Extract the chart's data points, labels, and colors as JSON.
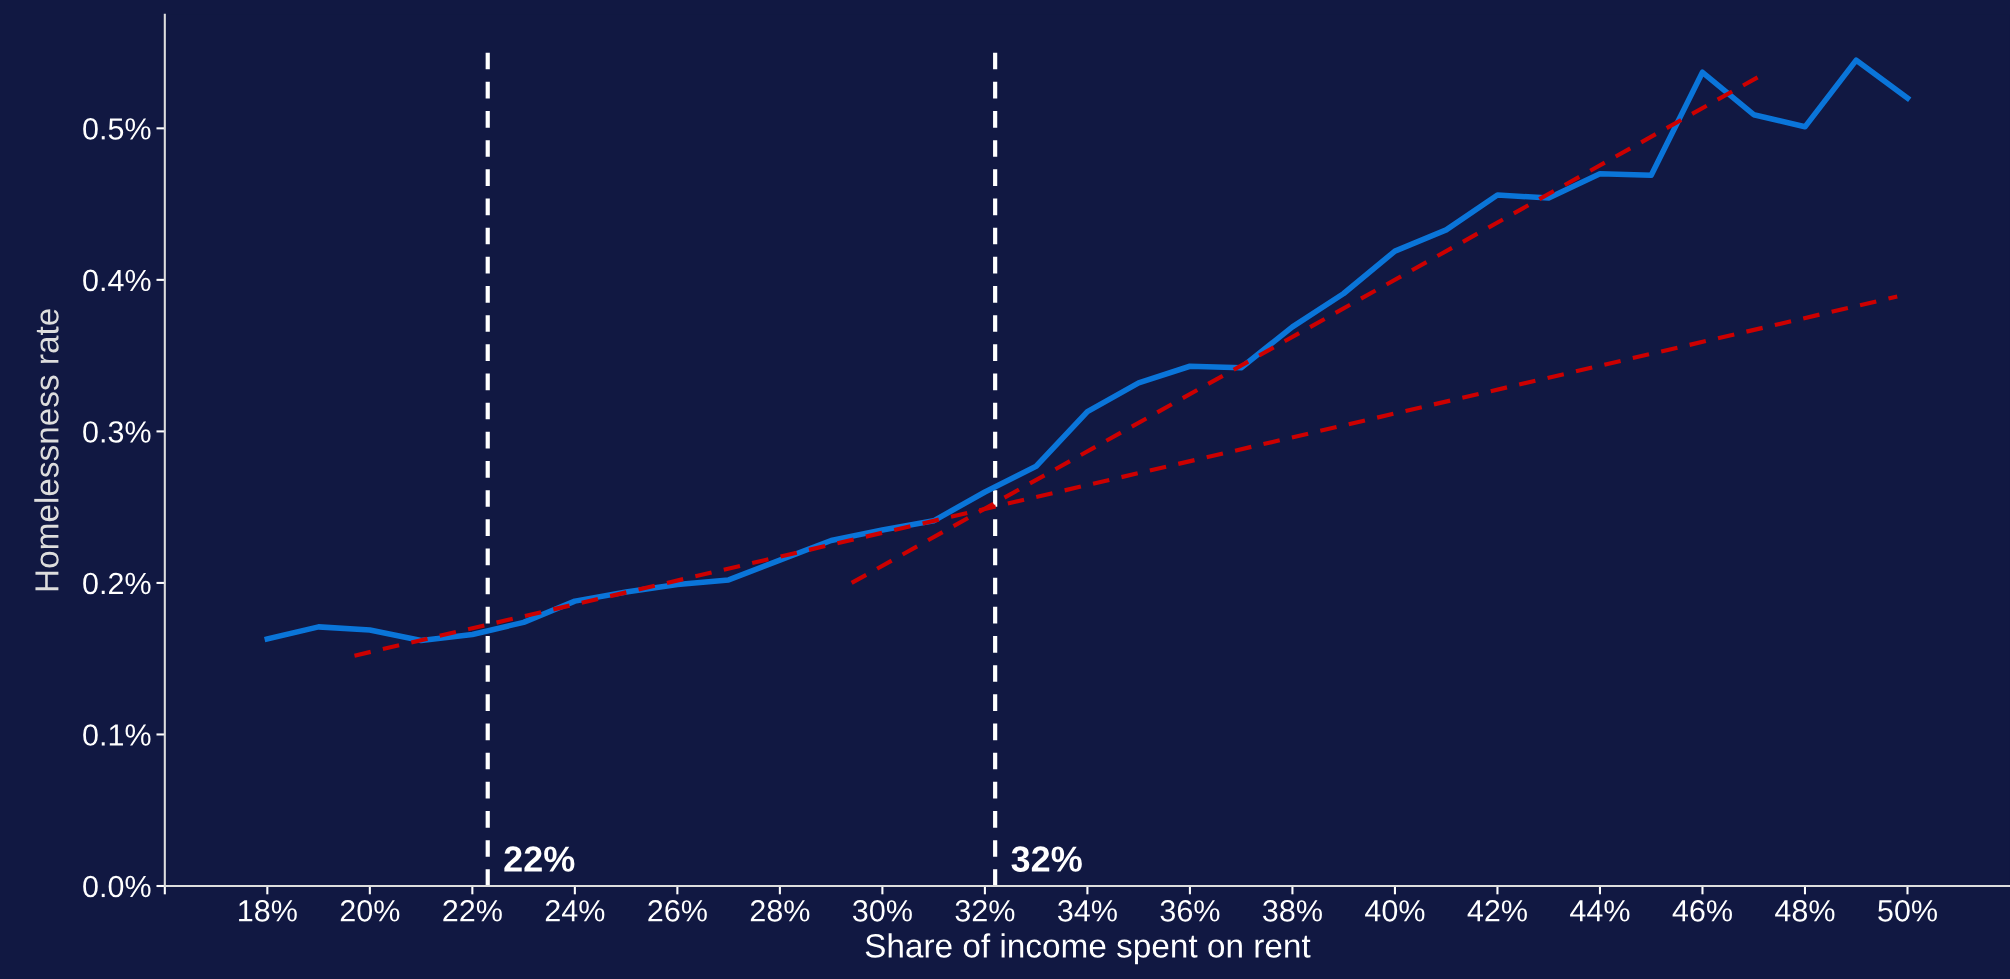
{
  "chart_data": {
    "type": "line",
    "xlabel": "Share of income spent on rent",
    "ylabel": "Homelessness rate",
    "xlim": [
      16,
      52
    ],
    "ylim": [
      0,
      0.575
    ],
    "xticks": [
      {
        "value": 16,
        "label": null
      },
      {
        "value": 18,
        "label": "18%"
      },
      {
        "value": 20,
        "label": "20%"
      },
      {
        "value": 22,
        "label": "22%"
      },
      {
        "value": 24,
        "label": "24%"
      },
      {
        "value": 26,
        "label": "26%"
      },
      {
        "value": 28,
        "label": "28%"
      },
      {
        "value": 30,
        "label": "30%"
      },
      {
        "value": 32,
        "label": "32%"
      },
      {
        "value": 34,
        "label": "34%"
      },
      {
        "value": 36,
        "label": "36%"
      },
      {
        "value": 38,
        "label": "38%"
      },
      {
        "value": 40,
        "label": "40%"
      },
      {
        "value": 42,
        "label": "42%"
      },
      {
        "value": 44,
        "label": "44%"
      },
      {
        "value": 46,
        "label": "46%"
      },
      {
        "value": 48,
        "label": "48%"
      },
      {
        "value": 50,
        "label": "50%"
      }
    ],
    "yticks": [
      {
        "value": 0,
        "label": "0.0%"
      },
      {
        "value": 0.1,
        "label": "0.1%"
      },
      {
        "value": 0.2,
        "label": "0.2%"
      },
      {
        "value": 0.3,
        "label": "0.3%"
      },
      {
        "value": 0.4,
        "label": "0.4%"
      },
      {
        "value": 0.5,
        "label": "0.5%"
      }
    ],
    "x": [
      18,
      19,
      20,
      21,
      22,
      23,
      24,
      25,
      26,
      27,
      28,
      29,
      30,
      31,
      32,
      33,
      34,
      35,
      36,
      37,
      38,
      39,
      40,
      41,
      42,
      43,
      44,
      45,
      46,
      47,
      48,
      49,
      50
    ],
    "series": [
      {
        "color": "#0a75d9",
        "line_style": "solid",
        "values": [
          0.163,
          0.171,
          0.169,
          0.162,
          0.166,
          0.174,
          0.188,
          0.194,
          0.199,
          0.202,
          0.215,
          0.228,
          0.235,
          0.241,
          0.26,
          0.277,
          0.313,
          0.332,
          0.343,
          0.342,
          0.369,
          0.391,
          0.419,
          0.433,
          0.456,
          0.454,
          0.47,
          0.469,
          0.537,
          0.509,
          0.501,
          0.545,
          0.52
        ]
      },
      {
        "type": "line",
        "color": "#cc0000",
        "line_style": "dashed",
        "x": [
          19.7,
          49.8
        ],
        "values": [
          0.152,
          0.389
        ]
      },
      {
        "type": "line",
        "color": "#cc0000",
        "line_style": "dashed",
        "x": [
          29.4,
          47.2
        ],
        "values": [
          0.2,
          0.536
        ]
      }
    ],
    "ref_lines": [
      {
        "axis": "x",
        "value": 22.3,
        "label": "22%",
        "color": "#ffffff",
        "line_style": "dashed"
      },
      {
        "axis": "x",
        "value": 32.2,
        "label": "32%",
        "color": "#ffffff",
        "line_style": "dashed"
      }
    ],
    "grid": false,
    "marker": "none"
  }
}
